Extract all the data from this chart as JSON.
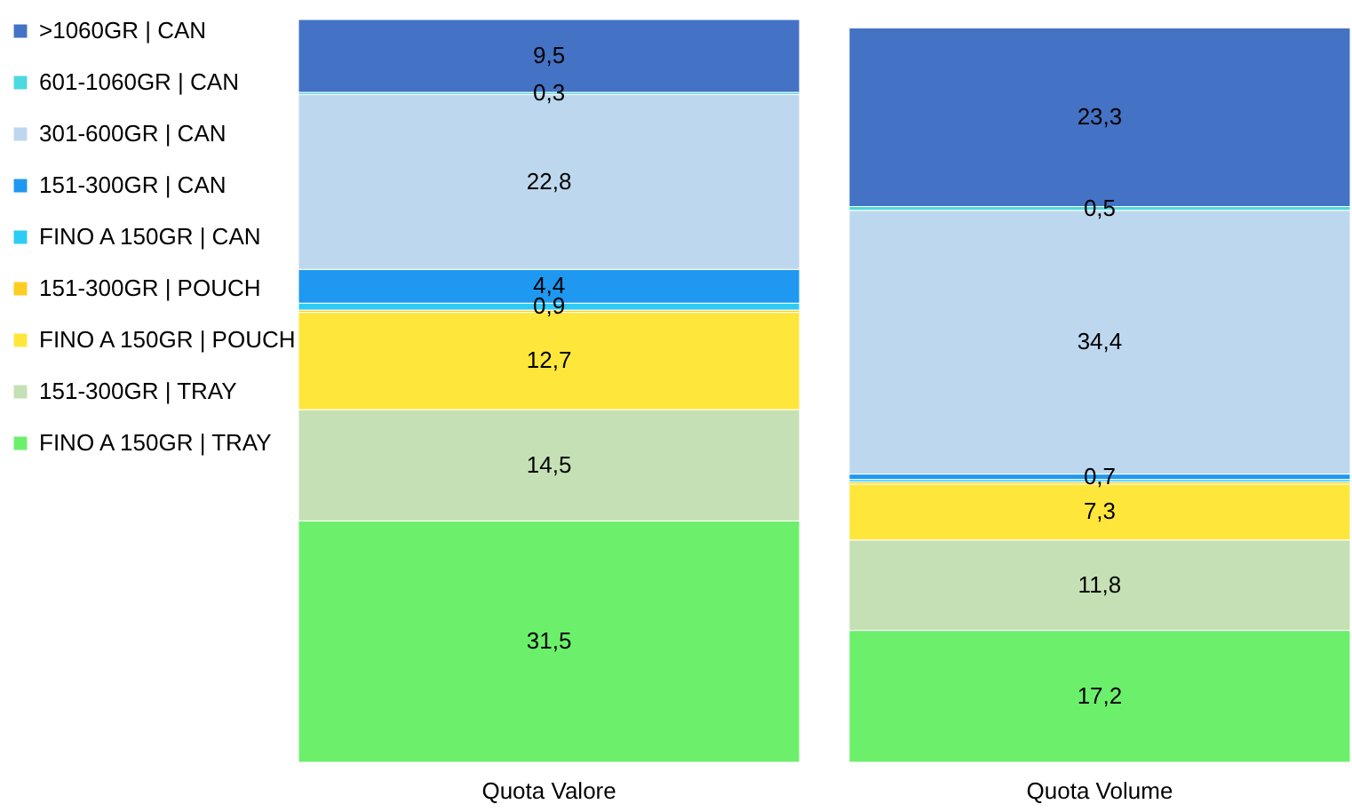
{
  "chart_data": {
    "type": "bar",
    "stacked": true,
    "categories": [
      "Quota Valore",
      "Quota Volume"
    ],
    "series": [
      {
        "name": "FINO A  150GR | TRAY",
        "color": "#6cf06c",
        "values": [
          31.5,
          17.2
        ],
        "value_labels": [
          "31,5",
          "17,2"
        ]
      },
      {
        "name": "151-300GR | TRAY",
        "color": "#c5e0b4",
        "values": [
          14.5,
          11.8
        ],
        "value_labels": [
          "14,5",
          "11,8"
        ]
      },
      {
        "name": "FINO A 150GR | POUCH",
        "color": "#ffe63b",
        "values": [
          12.7,
          7.3
        ],
        "value_labels": [
          "12,7",
          "7,3"
        ]
      },
      {
        "name": "151-300GR | POUCH",
        "color": "#ffcc22",
        "values": [
          0.3,
          0.3
        ],
        "value_labels": [
          null,
          null
        ]
      },
      {
        "name": "FINO A 150GR | CAN",
        "color": "#2ecbf5",
        "values": [
          0.9,
          0.3
        ],
        "value_labels": [
          "0,9",
          null
        ]
      },
      {
        "name": "151-300GR | CAN",
        "color": "#1e98f0",
        "values": [
          4.4,
          0.7
        ],
        "value_labels": [
          "4,4",
          "0,7"
        ]
      },
      {
        "name": "301-600GR | CAN",
        "color": "#bdd7ee",
        "values": [
          22.8,
          34.4
        ],
        "value_labels": [
          "22,8",
          "34,4"
        ]
      },
      {
        "name": "601-1060GR | CAN",
        "color": "#4dd9e0",
        "values": [
          0.3,
          0.5
        ],
        "value_labels": [
          "0,3",
          "0,5"
        ]
      },
      {
        "name": ">1060GR | CAN",
        "color": "#4472c4",
        "values": [
          9.5,
          23.3
        ],
        "value_labels": [
          "9,5",
          "23,3"
        ]
      }
    ],
    "legend": "left"
  }
}
